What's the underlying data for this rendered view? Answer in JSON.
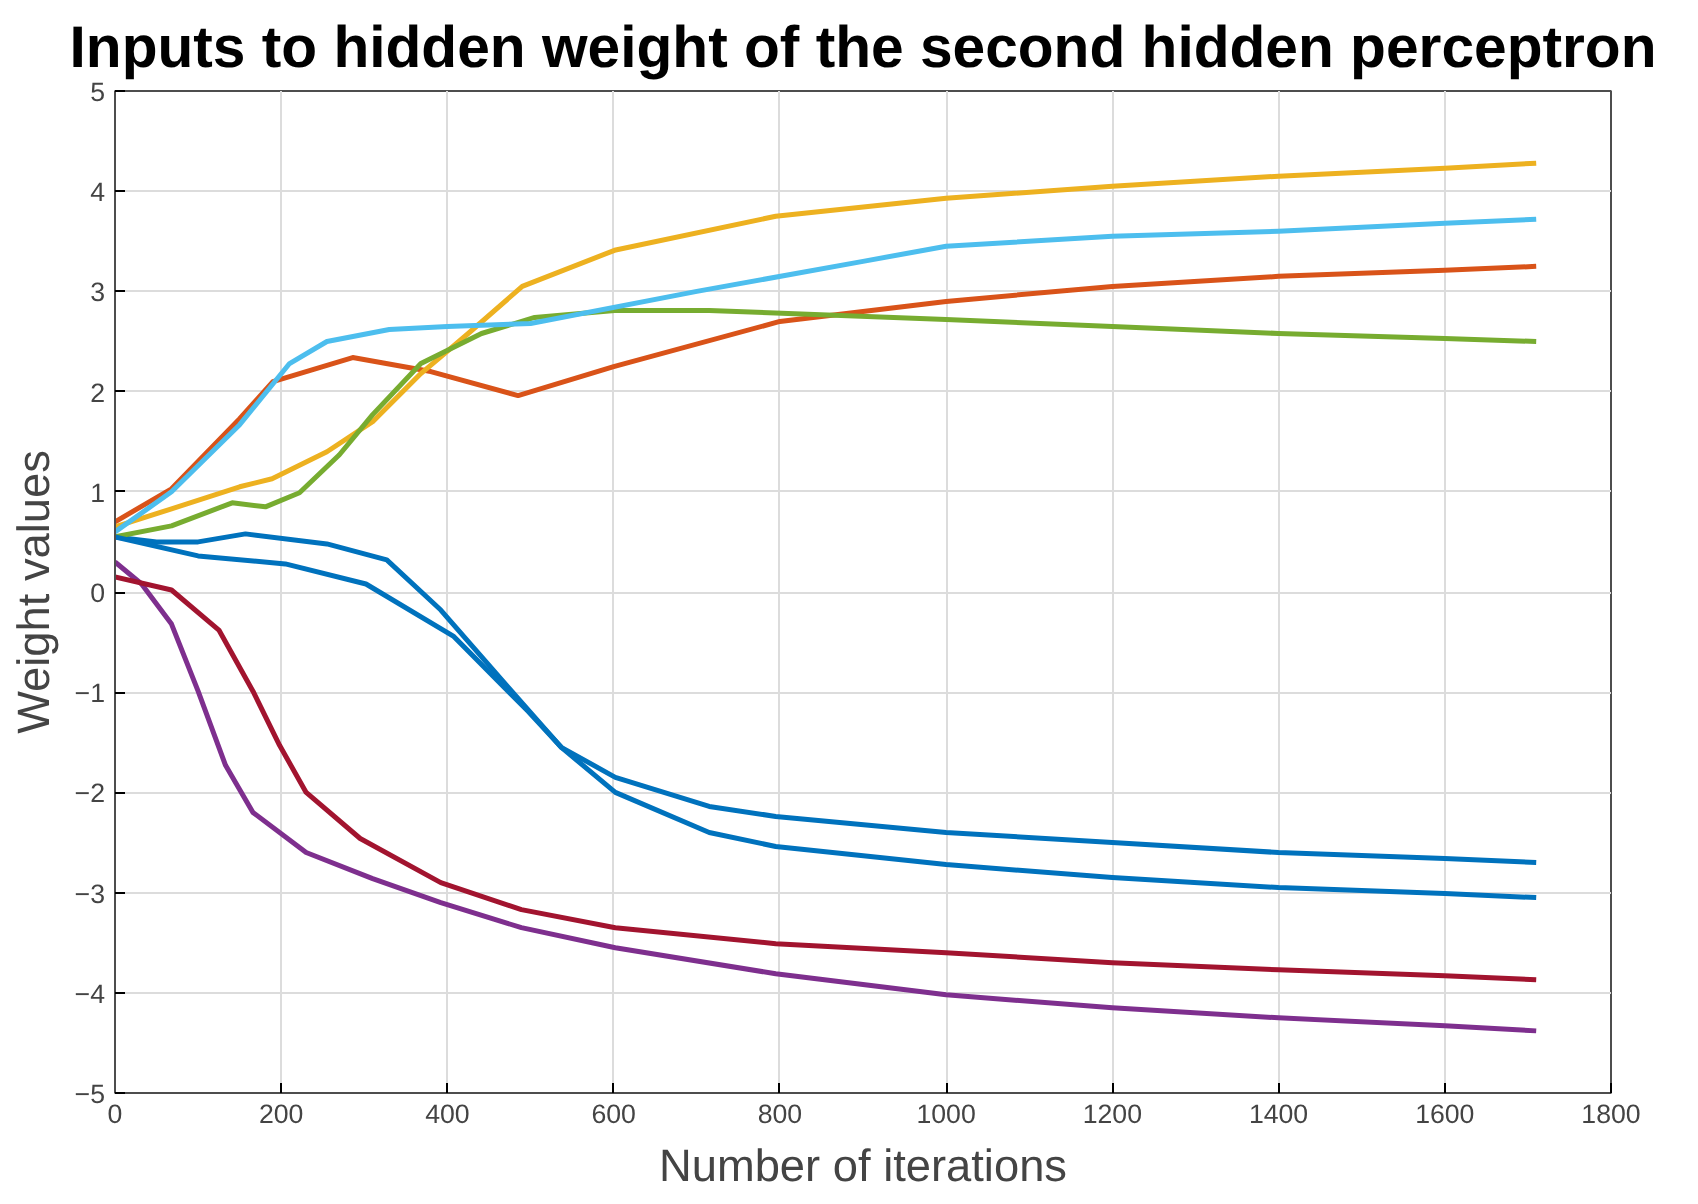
{
  "chart_data": {
    "type": "line",
    "title": "Inputs to hidden weight of the second hidden perceptron",
    "xlabel": "Number of iterations",
    "ylabel": "Weight values",
    "xlim": [
      0,
      1800
    ],
    "ylim": [
      -5,
      5
    ],
    "xticks": [
      0,
      200,
      400,
      600,
      800,
      1000,
      1200,
      1400,
      1600,
      1800
    ],
    "yticks": [
      -5,
      -4,
      -3,
      -2,
      -1,
      0,
      1,
      2,
      3,
      4,
      5
    ],
    "grid": true,
    "line_style": "solid",
    "marker": "none",
    "series": [
      {
        "color": "#0072bd",
        "x": [
          0,
          50,
          100,
          157,
          255,
          327,
          392,
          473,
          537,
          602,
          715,
          795,
          1000,
          1200,
          1400,
          1600,
          1710
        ],
        "values": [
          0.55,
          0.5,
          0.5,
          0.58,
          0.48,
          0.32,
          -0.18,
          -0.95,
          -1.55,
          -1.85,
          -2.14,
          -2.24,
          -2.4,
          -2.5,
          -2.6,
          -2.66,
          -2.7
        ]
      },
      {
        "color": "#d95319",
        "x": [
          0,
          68,
          150,
          190,
          286,
          380,
          485,
          600,
          800,
          1000,
          1200,
          1400,
          1600,
          1710
        ],
        "values": [
          0.7,
          1.03,
          1.73,
          2.1,
          2.34,
          2.2,
          1.96,
          2.25,
          2.7,
          2.9,
          3.05,
          3.15,
          3.21,
          3.25
        ]
      },
      {
        "color": "#edb120",
        "x": [
          0,
          68,
          150,
          189,
          255,
          310,
          368,
          425,
          490,
          601,
          795,
          1000,
          1200,
          1400,
          1600,
          1710
        ],
        "values": [
          0.65,
          0.83,
          1.05,
          1.13,
          1.4,
          1.7,
          2.18,
          2.58,
          3.05,
          3.41,
          3.75,
          3.93,
          4.05,
          4.15,
          4.23,
          4.28
        ]
      },
      {
        "color": "#7e2f8e",
        "x": [
          0,
          32,
          68,
          100,
          133,
          166,
          230,
          310,
          392,
          489,
          602,
          795,
          1000,
          1200,
          1400,
          1600,
          1710
        ],
        "values": [
          0.3,
          0.08,
          -0.32,
          -0.99,
          -1.73,
          -2.2,
          -2.6,
          -2.86,
          -3.1,
          -3.35,
          -3.55,
          -3.81,
          -4.02,
          -4.15,
          -4.25,
          -4.33,
          -4.38
        ]
      },
      {
        "color": "#77ac30",
        "x": [
          0,
          68,
          141,
          181,
          222,
          270,
          310,
          368,
          441,
          505,
          601,
          715,
          1000,
          1200,
          1400,
          1600,
          1710
        ],
        "values": [
          0.55,
          0.66,
          0.89,
          0.85,
          0.99,
          1.37,
          1.77,
          2.28,
          2.58,
          2.74,
          2.81,
          2.81,
          2.72,
          2.65,
          2.58,
          2.53,
          2.5
        ]
      },
      {
        "color": "#4dbeee",
        "x": [
          0,
          68,
          150,
          210,
          255,
          330,
          400,
          500,
          700,
          900,
          1000,
          1200,
          1400,
          1600,
          1710
        ],
        "values": [
          0.6,
          1.0,
          1.67,
          2.28,
          2.5,
          2.62,
          2.65,
          2.68,
          3.0,
          3.3,
          3.45,
          3.55,
          3.6,
          3.68,
          3.72
        ]
      },
      {
        "color": "#a2142f",
        "x": [
          0,
          68,
          125,
          166,
          198,
          230,
          295,
          392,
          489,
          602,
          795,
          1000,
          1200,
          1400,
          1600,
          1710
        ],
        "values": [
          0.15,
          0.02,
          -0.38,
          -0.99,
          -1.53,
          -2.0,
          -2.46,
          -2.9,
          -3.17,
          -3.35,
          -3.51,
          -3.6,
          -3.7,
          -3.77,
          -3.83,
          -3.87
        ]
      },
      {
        "color": "#0072bd",
        "x": [
          0,
          100,
          205,
          302,
          407,
          497,
          537,
          602,
          715,
          795,
          1000,
          1200,
          1400,
          1600,
          1710
        ],
        "values": [
          0.55,
          0.36,
          0.28,
          0.08,
          -0.44,
          -1.19,
          -1.55,
          -2.0,
          -2.4,
          -2.54,
          -2.72,
          -2.85,
          -2.95,
          -3.01,
          -3.05
        ]
      }
    ]
  }
}
